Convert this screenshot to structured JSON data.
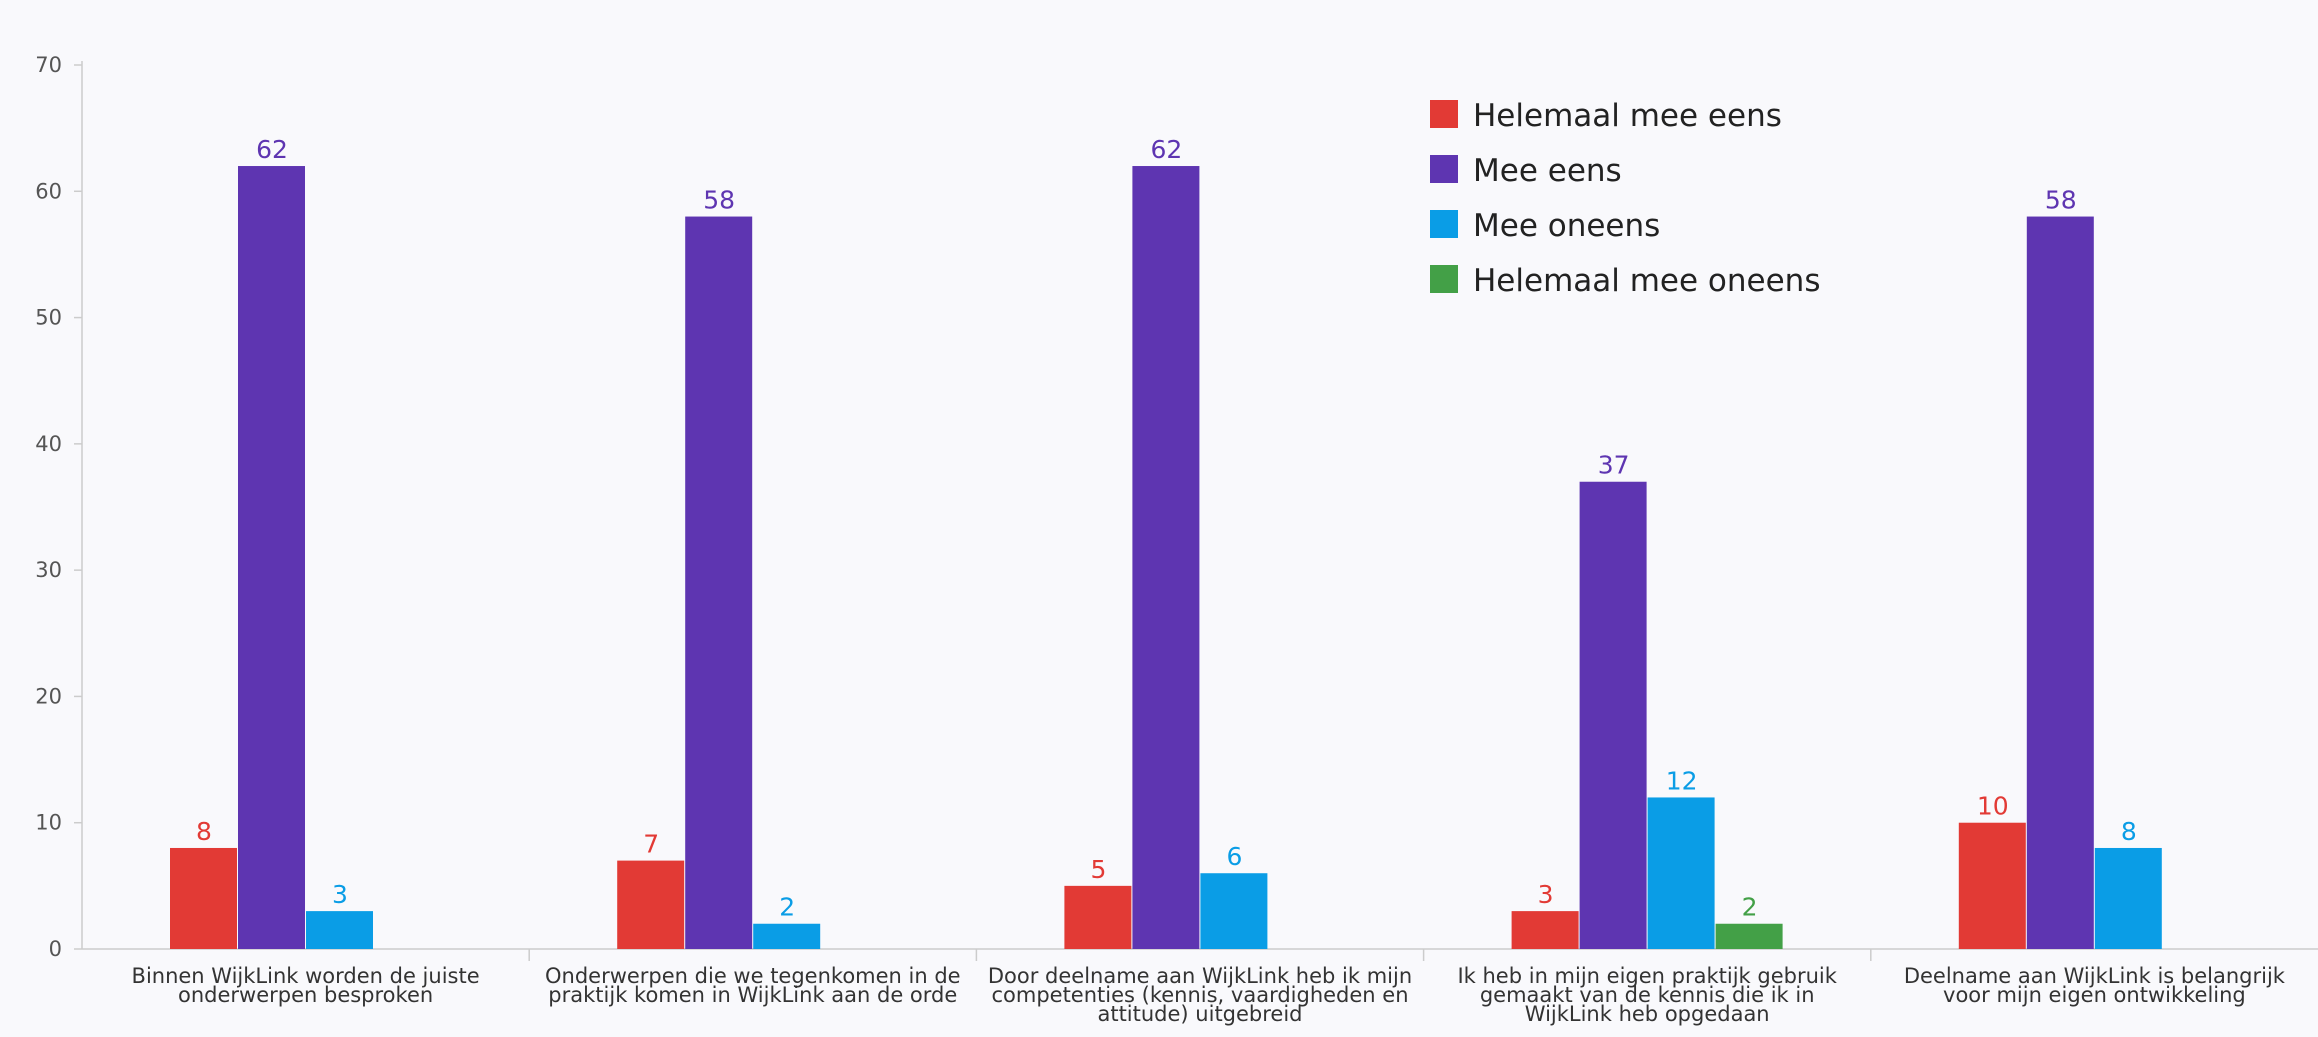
{
  "chart_data": {
    "type": "bar",
    "title": "",
    "xlabel": "",
    "ylabel": "",
    "ylim": [
      0,
      70
    ],
    "yticks": [
      0,
      10,
      20,
      30,
      40,
      50,
      60,
      70
    ],
    "grid": false,
    "legend_position": "top-right",
    "categories": [
      [
        "Binnen WijkLink worden de juiste",
        "onderwerpen besproken"
      ],
      [
        "Onderwerpen die we tegenkomen in de",
        "praktijk komen in WijkLink aan de orde"
      ],
      [
        "Door deelname aan WijkLink heb ik mijn",
        "competenties (kennis, vaardigheden en",
        "attitude) uitgebreid"
      ],
      [
        "Ik heb in mijn eigen praktijk gebruik",
        "gemaakt van de kennis die ik in",
        "WijkLink heb opgedaan"
      ],
      [
        "Deelname aan WijkLink is belangrijk",
        "voor mijn eigen ontwikkeling"
      ]
    ],
    "series": [
      {
        "name": "Helemaal mee eens",
        "color": "#e23a35",
        "values": [
          8,
          7,
          5,
          3,
          10
        ]
      },
      {
        "name": "Mee eens",
        "color": "#5e35b1",
        "values": [
          62,
          58,
          62,
          37,
          58
        ]
      },
      {
        "name": "Mee oneens",
        "color": "#0a9de6",
        "values": [
          3,
          2,
          6,
          12,
          8
        ]
      },
      {
        "name": "Helemaal mee oneens",
        "color": "#43a047",
        "values": [
          null,
          null,
          null,
          2,
          null
        ]
      }
    ]
  }
}
